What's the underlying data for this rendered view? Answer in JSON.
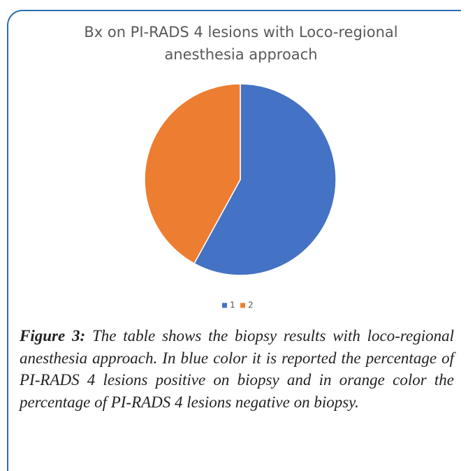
{
  "chart_data": {
    "type": "pie",
    "title": "Bx on PI-RADS 4 lesions with Loco-regional anesthesia approach",
    "categories": [
      "1",
      "2"
    ],
    "values": [
      58,
      42
    ],
    "colors": [
      "#4472c4",
      "#ed7d31"
    ],
    "legend": "bottom"
  },
  "caption": {
    "label": "Figure 3:",
    "text": "The table shows the biopsy results with loco-regional anesthesia approach. In blue color it is reported the percentage of PI-RADS 4 lesions positive on biopsy and in orange color the percentage of PI-RADS 4 lesions negative on biopsy."
  }
}
